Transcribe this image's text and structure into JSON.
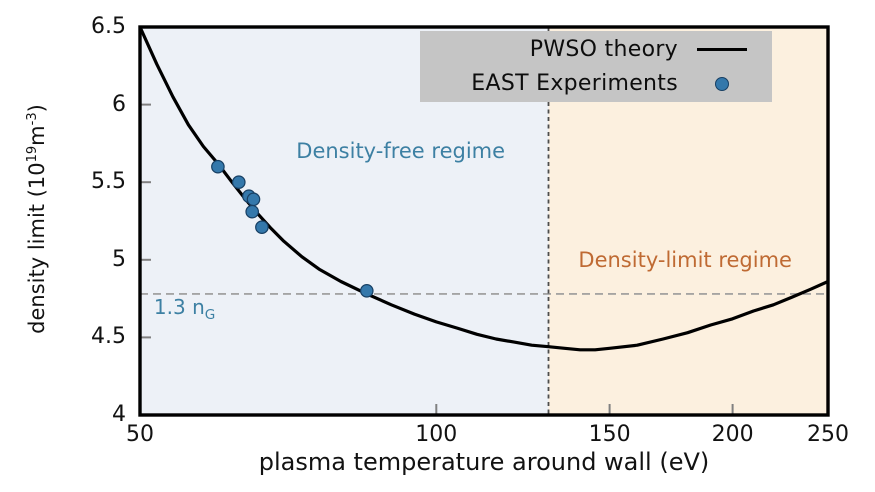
{
  "chart_data": {
    "type": "line",
    "title": "",
    "x_scale": "log",
    "x_range": [
      50,
      250
    ],
    "y_range": [
      4.0,
      6.5
    ],
    "x_ticks": [
      50,
      100,
      150,
      200,
      250
    ],
    "y_ticks": [
      4,
      4.5,
      5,
      5.5,
      6,
      6.5
    ],
    "xlabel": "plasma temperature around wall (eV)",
    "ylabel_parts": {
      "pre": "density limit (10",
      "sup1": "19",
      "mid": "m",
      "sup2": "-3",
      "post": ")"
    },
    "grid": false,
    "legend_position": "top-right",
    "regions": {
      "boundary_x": 130,
      "free_fill": "#edf1f7",
      "limit_fill": "#fcf0df"
    },
    "reference_lines": {
      "horizontal": {
        "y": 4.78,
        "color": "#999999",
        "style": "dashed"
      },
      "vertical": {
        "x": 130,
        "color": "#4d4d4d",
        "style": "dashed"
      }
    },
    "series": [
      {
        "name": "PWSO theory",
        "type": "line",
        "color": "#000000",
        "points": [
          [
            50,
            6.5
          ],
          [
            52,
            6.26
          ],
          [
            54,
            6.05
          ],
          [
            56,
            5.87
          ],
          [
            58,
            5.73
          ],
          [
            60,
            5.62
          ],
          [
            62,
            5.5
          ],
          [
            64,
            5.39
          ],
          [
            66,
            5.29
          ],
          [
            68,
            5.2
          ],
          [
            70,
            5.12
          ],
          [
            73,
            5.02
          ],
          [
            76,
            4.94
          ],
          [
            80,
            4.86
          ],
          [
            85,
            4.78
          ],
          [
            90,
            4.71
          ],
          [
            95,
            4.65
          ],
          [
            100,
            4.6
          ],
          [
            105,
            4.56
          ],
          [
            110,
            4.52
          ],
          [
            115,
            4.49
          ],
          [
            120,
            4.47
          ],
          [
            125,
            4.45
          ],
          [
            130,
            4.44
          ],
          [
            135,
            4.43
          ],
          [
            140,
            4.42
          ],
          [
            145,
            4.42
          ],
          [
            150,
            4.43
          ],
          [
            160,
            4.45
          ],
          [
            170,
            4.49
          ],
          [
            180,
            4.53
          ],
          [
            190,
            4.58
          ],
          [
            200,
            4.62
          ],
          [
            210,
            4.67
          ],
          [
            220,
            4.71
          ],
          [
            230,
            4.76
          ],
          [
            240,
            4.81
          ],
          [
            250,
            4.86
          ]
        ]
      },
      {
        "name": "EAST Experiments",
        "type": "scatter",
        "fill": "#3478ab",
        "stroke": "#173f63",
        "points": [
          [
            60,
            5.6
          ],
          [
            63,
            5.5
          ],
          [
            64.5,
            5.41
          ],
          [
            65.2,
            5.39
          ],
          [
            65,
            5.31
          ],
          [
            66.5,
            5.21
          ],
          [
            85,
            4.8
          ]
        ]
      }
    ],
    "annotations": {
      "density_free": {
        "text": "Density-free regime",
        "color": "#3d80a3",
        "x": 92,
        "y": 5.7
      },
      "density_limit": {
        "text": "Density-limit regime",
        "color": "#bf6a33",
        "x": 179,
        "y": 5.0
      },
      "ng_label": {
        "text": "1.3 n",
        "sub": "G",
        "color": "#3d80a3",
        "x": 55.5,
        "y": 4.68
      }
    }
  },
  "legend": {
    "background": "#c5c5c5",
    "items": [
      {
        "label": "PWSO theory",
        "marker": "line"
      },
      {
        "label": "EAST Experiments",
        "marker": "dot"
      }
    ]
  }
}
